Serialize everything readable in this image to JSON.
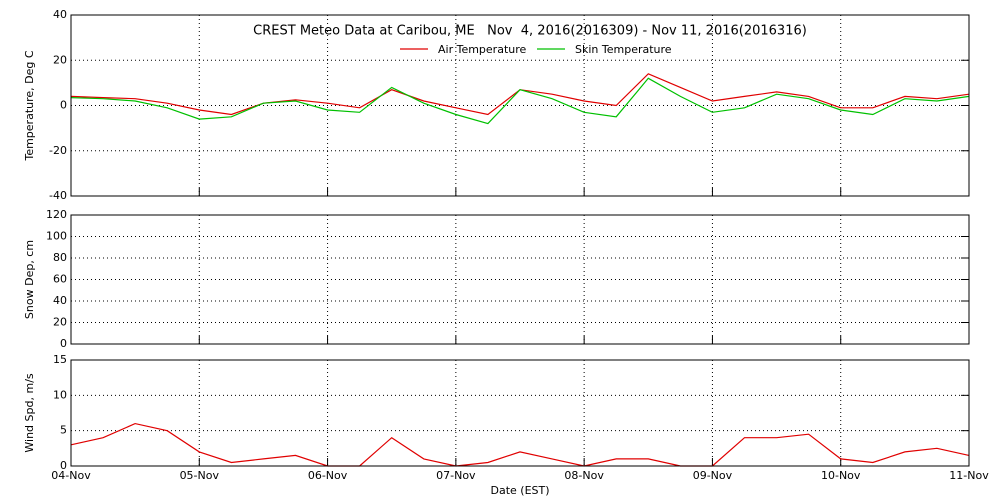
{
  "chart_data": [
    {
      "type": "line",
      "title": "CREST Meteo Data at Caribou, ME   Nov  4, 2016(2016309) - Nov 11, 2016(2016316)",
      "ylabel": "Temperature, Deg C",
      "ylim": [
        -40,
        40
      ],
      "yticks": [
        -40,
        -20,
        0,
        20,
        40
      ],
      "grid": true,
      "series": [
        {
          "name": "Air Temperature",
          "color": "#e00000",
          "values": [
            4,
            3.5,
            3,
            1,
            -2,
            -4,
            1,
            2.5,
            1,
            -1,
            7,
            2,
            -1,
            -4,
            7,
            5,
            2,
            0,
            14,
            8,
            2,
            4,
            6,
            4,
            -1,
            -1,
            4,
            3,
            5
          ]
        },
        {
          "name": "Skin Temperature",
          "color": "#00c000",
          "values": [
            3.5,
            3,
            2,
            -1,
            -6,
            -5,
            1,
            2,
            -2,
            -3,
            8,
            1,
            -4,
            -8,
            7,
            3,
            -3,
            -5,
            12,
            4,
            -3,
            -1,
            5,
            3,
            -2,
            -4,
            3,
            2,
            4
          ]
        }
      ]
    },
    {
      "type": "line",
      "ylabel": "Snow Dep, cm",
      "ylim": [
        0,
        120
      ],
      "yticks": [
        0,
        20,
        40,
        60,
        80,
        100,
        120
      ],
      "grid": true,
      "series": []
    },
    {
      "type": "line",
      "ylabel": "Wind Spd, m/s",
      "xlabel": "Date (EST)",
      "ylim": [
        0,
        15
      ],
      "yticks": [
        0,
        5,
        10,
        15
      ],
      "grid": true,
      "categories": [
        "04-Nov",
        null,
        null,
        null,
        "05-Nov",
        null,
        null,
        null,
        "06-Nov",
        null,
        null,
        null,
        "07-Nov",
        null,
        null,
        null,
        "08-Nov",
        null,
        null,
        null,
        "09-Nov",
        null,
        null,
        null,
        "10-Nov",
        null,
        null,
        null,
        "11-Nov"
      ],
      "series": [
        {
          "name": "Wind Speed",
          "color": "#e00000",
          "values": [
            3,
            4,
            6,
            5,
            2,
            0.5,
            1,
            1.5,
            0,
            0,
            4,
            1,
            0,
            0.5,
            2,
            1,
            0,
            1,
            1,
            0,
            0,
            4,
            4,
            4.5,
            1,
            0.5,
            2,
            2.5,
            1.5
          ]
        }
      ]
    }
  ]
}
